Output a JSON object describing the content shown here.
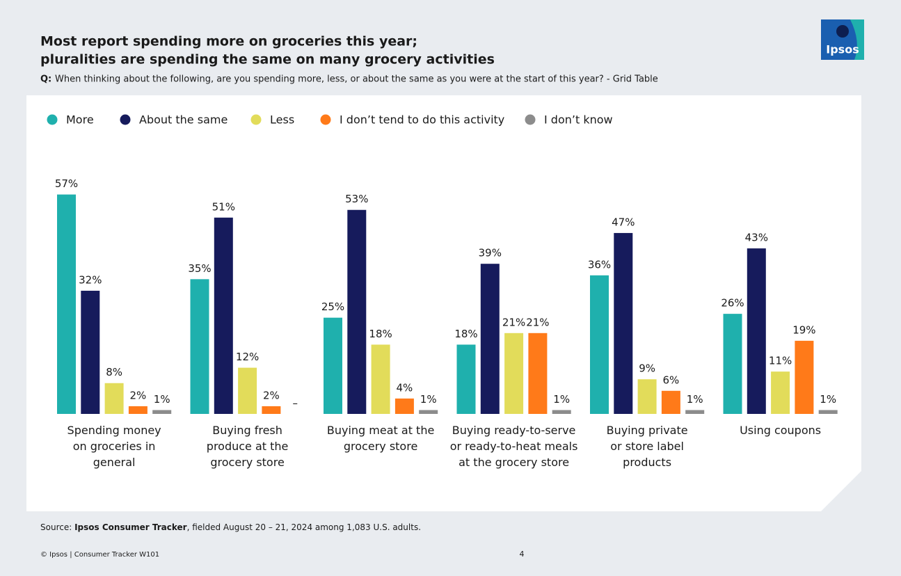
{
  "chart_data": {
    "type": "bar",
    "title": [
      "Most report spending more on groceries this year;",
      "pluralities are spending the same on many grocery activities"
    ],
    "question_label": "Q:",
    "question": "When thinking about the following, are you spending more, less, or about the same as you were at the start of this year? - Grid Table",
    "categories": [
      "Spending money\non groceries in\ngeneral",
      "Buying fresh\nproduce at the\ngrocery store",
      "Buying meat at the\ngrocery store",
      "Buying ready-to-serve\nor ready-to-heat meals\nat the grocery store",
      "Buying private\nor store label\nproducts",
      "Using coupons"
    ],
    "series": [
      {
        "name": "More",
        "color": "#1fb0ad",
        "values": [
          57,
          35,
          25,
          18,
          36,
          26
        ],
        "value_labels": [
          "57%",
          "35%",
          "25%",
          "18%",
          "36%",
          "26%"
        ]
      },
      {
        "name": "About the same",
        "color": "#161b5c",
        "values": [
          32,
          51,
          53,
          39,
          47,
          43
        ],
        "value_labels": [
          "32%",
          "51%",
          "53%",
          "39%",
          "47%",
          "43%"
        ]
      },
      {
        "name": "Less",
        "color": "#e2dc5a",
        "values": [
          8,
          12,
          18,
          21,
          9,
          11
        ],
        "value_labels": [
          "8%",
          "12%",
          "18%",
          "21%",
          "9%",
          "11%"
        ]
      },
      {
        "name": "I don’t tend to do this activity",
        "color": "#ff7a19",
        "values": [
          2,
          2,
          4,
          21,
          6,
          19
        ],
        "value_labels": [
          "2%",
          "2%",
          "4%",
          "21%",
          "6%",
          "19%"
        ]
      },
      {
        "name": "I don’t know",
        "color": "#8c8c8c",
        "values": [
          1,
          null,
          1,
          1,
          1,
          1
        ],
        "value_labels": [
          "1%",
          "–",
          "1%",
          "1%",
          "1%",
          "1%"
        ]
      }
    ],
    "ylim": [
      0,
      60
    ]
  },
  "logo": "Ipsos",
  "source": {
    "label": "Source:",
    "name": "Ipsos Consumer Tracker",
    "text": ", fielded August 20 – 21, 2024 among 1,083 U.S. adults."
  },
  "footer": "© Ipsos | Consumer Tracker W101",
  "page_number": "4"
}
